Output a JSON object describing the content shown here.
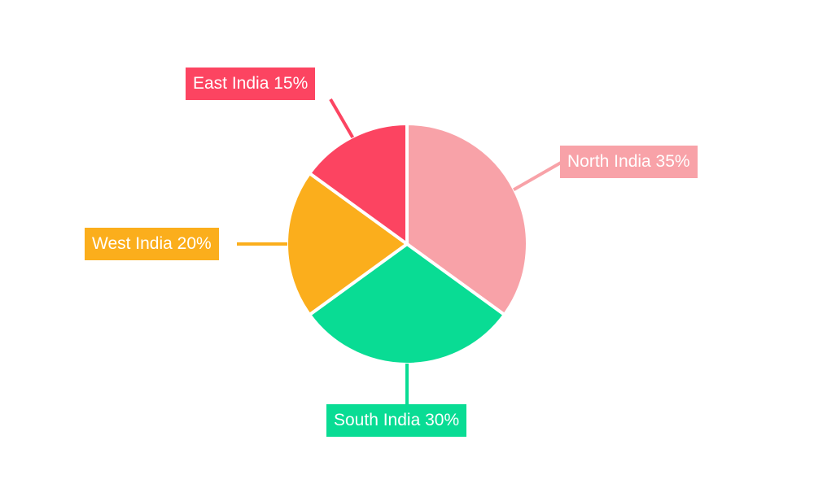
{
  "page": {
    "background_color": "#ffffff",
    "label_text_color": "#ffffff"
  },
  "chart_data": {
    "type": "pie",
    "unit": "%",
    "start_angle_deg": 0,
    "direction": "clockwise",
    "legend": "none",
    "labels_style": "callout-boxes-with-leader-lines",
    "categories": [
      "North India",
      "South India",
      "West India",
      "East India"
    ],
    "values": [
      35,
      30,
      20,
      15
    ],
    "slices": [
      {
        "label": "North India",
        "value": 35,
        "color": "#F8A2A8",
        "callout": "North India 35%"
      },
      {
        "label": "South India",
        "value": 30,
        "color": "#09DC94",
        "callout": "South India 30%"
      },
      {
        "label": "West India",
        "value": 20,
        "color": "#FBAE1C",
        "callout": "West India 20%"
      },
      {
        "label": "East India",
        "value": 15,
        "color": "#FC4461",
        "callout": "East India 15%"
      }
    ]
  }
}
